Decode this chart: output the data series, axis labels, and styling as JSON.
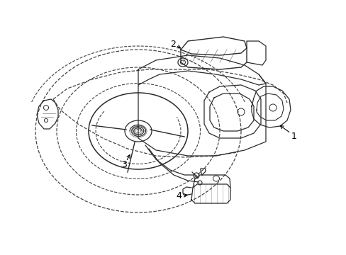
{
  "background_color": "#ffffff",
  "line_color": "#2a2a2a",
  "dashed_color": "#444444",
  "label_color": "#000000",
  "fig_width": 4.89,
  "fig_height": 3.6,
  "dpi": 100
}
